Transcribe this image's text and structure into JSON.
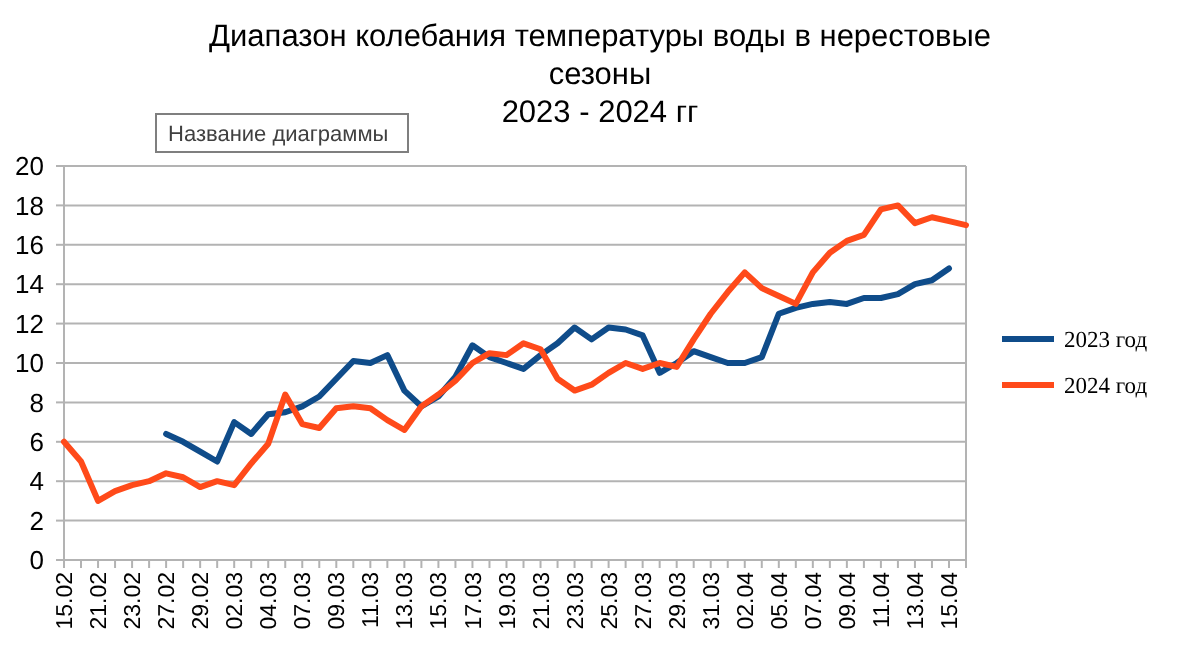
{
  "chart_data": {
    "type": "line",
    "title": "Диапазон колебания температуры воды в нерестовые\nсезоны\n2023 - 2024 гг",
    "annotations": [
      "Название диаграммы"
    ],
    "categories": [
      "15.02",
      null,
      "21.02",
      null,
      "23.02",
      null,
      "27.02",
      null,
      "29.02",
      null,
      "02.03",
      null,
      "04.03",
      null,
      "07.03",
      null,
      "09.03",
      null,
      "11.03",
      null,
      "13.03",
      null,
      "15.03",
      null,
      "17.03",
      null,
      "19.03",
      null,
      "21.03",
      null,
      "23.03",
      null,
      "25.03",
      null,
      "27.03",
      null,
      "29.03",
      null,
      "31.03",
      null,
      "02.04",
      null,
      "05.04",
      null,
      "07.04",
      null,
      "09.04",
      null,
      "11.04",
      null,
      "13.04",
      null,
      "15.04",
      null
    ],
    "series": [
      {
        "name": "2023 год",
        "color": "#0f4c8a",
        "values": [
          null,
          null,
          null,
          null,
          null,
          null,
          6.4,
          6.0,
          5.5,
          5.0,
          7.0,
          6.4,
          7.4,
          7.5,
          7.8,
          8.3,
          9.2,
          10.1,
          10.0,
          10.4,
          8.6,
          7.8,
          8.3,
          9.3,
          10.9,
          10.3,
          10.0,
          9.7,
          10.4,
          11.0,
          11.8,
          11.2,
          11.8,
          11.7,
          11.4,
          9.5,
          10.0,
          10.6,
          10.3,
          10.0,
          10.0,
          10.3,
          12.5,
          12.8,
          13.0,
          13.1,
          13.0,
          13.3,
          13.3,
          13.5,
          14.0,
          14.2,
          14.8,
          null
        ]
      },
      {
        "name": "2024 год",
        "color": "#ff4a1a",
        "values": [
          6.0,
          5.0,
          3.0,
          3.5,
          3.8,
          4.0,
          4.4,
          4.2,
          3.7,
          4.0,
          3.8,
          4.9,
          5.9,
          8.4,
          6.9,
          6.7,
          7.7,
          7.8,
          7.7,
          7.1,
          6.6,
          7.8,
          8.4,
          9.1,
          10.0,
          10.5,
          10.4,
          11.0,
          10.7,
          9.2,
          8.6,
          8.9,
          9.5,
          10.0,
          9.7,
          10.0,
          9.8,
          11.2,
          12.5,
          13.6,
          14.6,
          13.8,
          13.4,
          13.0,
          14.6,
          15.6,
          16.2,
          16.5,
          17.8,
          18.0,
          17.1,
          17.4,
          17.2,
          17.0
        ]
      }
    ],
    "ylim": [
      0,
      20
    ],
    "yticks": [
      0,
      2,
      4,
      6,
      8,
      10,
      12,
      14,
      16,
      18,
      20
    ],
    "grid": "y",
    "legend": "right",
    "line_style": "solid",
    "marker": "none"
  }
}
